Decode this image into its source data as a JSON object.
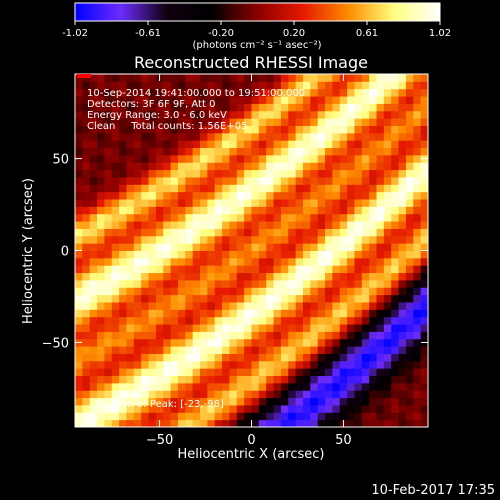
{
  "chart_data": {
    "type": "heatmap",
    "title": "Reconstructed RHESSI Image",
    "xlabel": "Heliocentric X (arcsec)",
    "ylabel": "Heliocentric Y (arcsec)",
    "xlim": [
      -96,
      96
    ],
    "ylim": [
      -96,
      96
    ],
    "xticks": [
      -50,
      0,
      50
    ],
    "yticks": [
      50,
      0,
      -50
    ],
    "grid": false,
    "pixel_size_arcsec": 4,
    "colorbar": {
      "min": -1.02,
      "max": 1.02,
      "ticks": [
        "-1.02",
        "-0.61",
        "-0.20",
        "0.20",
        "0.61",
        "1.02"
      ],
      "label": "(photons cm⁻² s⁻¹ asec⁻²)",
      "colormap": [
        "#0000ff",
        "#6d2cff",
        "#100010",
        "#000000",
        "#8b0000",
        "#e61a00",
        "#ff8c00",
        "#ffff80",
        "#ffffff"
      ]
    },
    "info_lines": [
      "10-Sep-2014 19:41:00.000 to 19:51:00.000",
      "Detectors: 3F 6F 9F, Att 0",
      "Energy Range: 3.0 - 6.0 keV",
      "Clean     Total counts: 1.56E+05"
    ],
    "peak_text": "Position of Peak: [-23,-98]",
    "peak": [
      -23,
      -98
    ],
    "bands": [
      {
        "offset_arcsec": -55,
        "amplitude": 0.75,
        "width_arcsec": 9
      },
      {
        "offset_arcsec": -27,
        "amplitude": 1.0,
        "width_arcsec": 13
      },
      {
        "offset_arcsec": 0,
        "amplitude": 0.55,
        "width_arcsec": 9
      },
      {
        "offset_arcsec": 28,
        "amplitude": 1.02,
        "width_arcsec": 13
      },
      {
        "offset_arcsec": 58,
        "amplitude": 0.7,
        "width_arcsec": 10
      },
      {
        "offset_arcsec": 88,
        "amplitude": -0.9,
        "width_arcsec": 14
      }
    ],
    "band_angle_deg": 36
  },
  "footer": {
    "timestamp": "10-Feb-2017 17:35"
  }
}
